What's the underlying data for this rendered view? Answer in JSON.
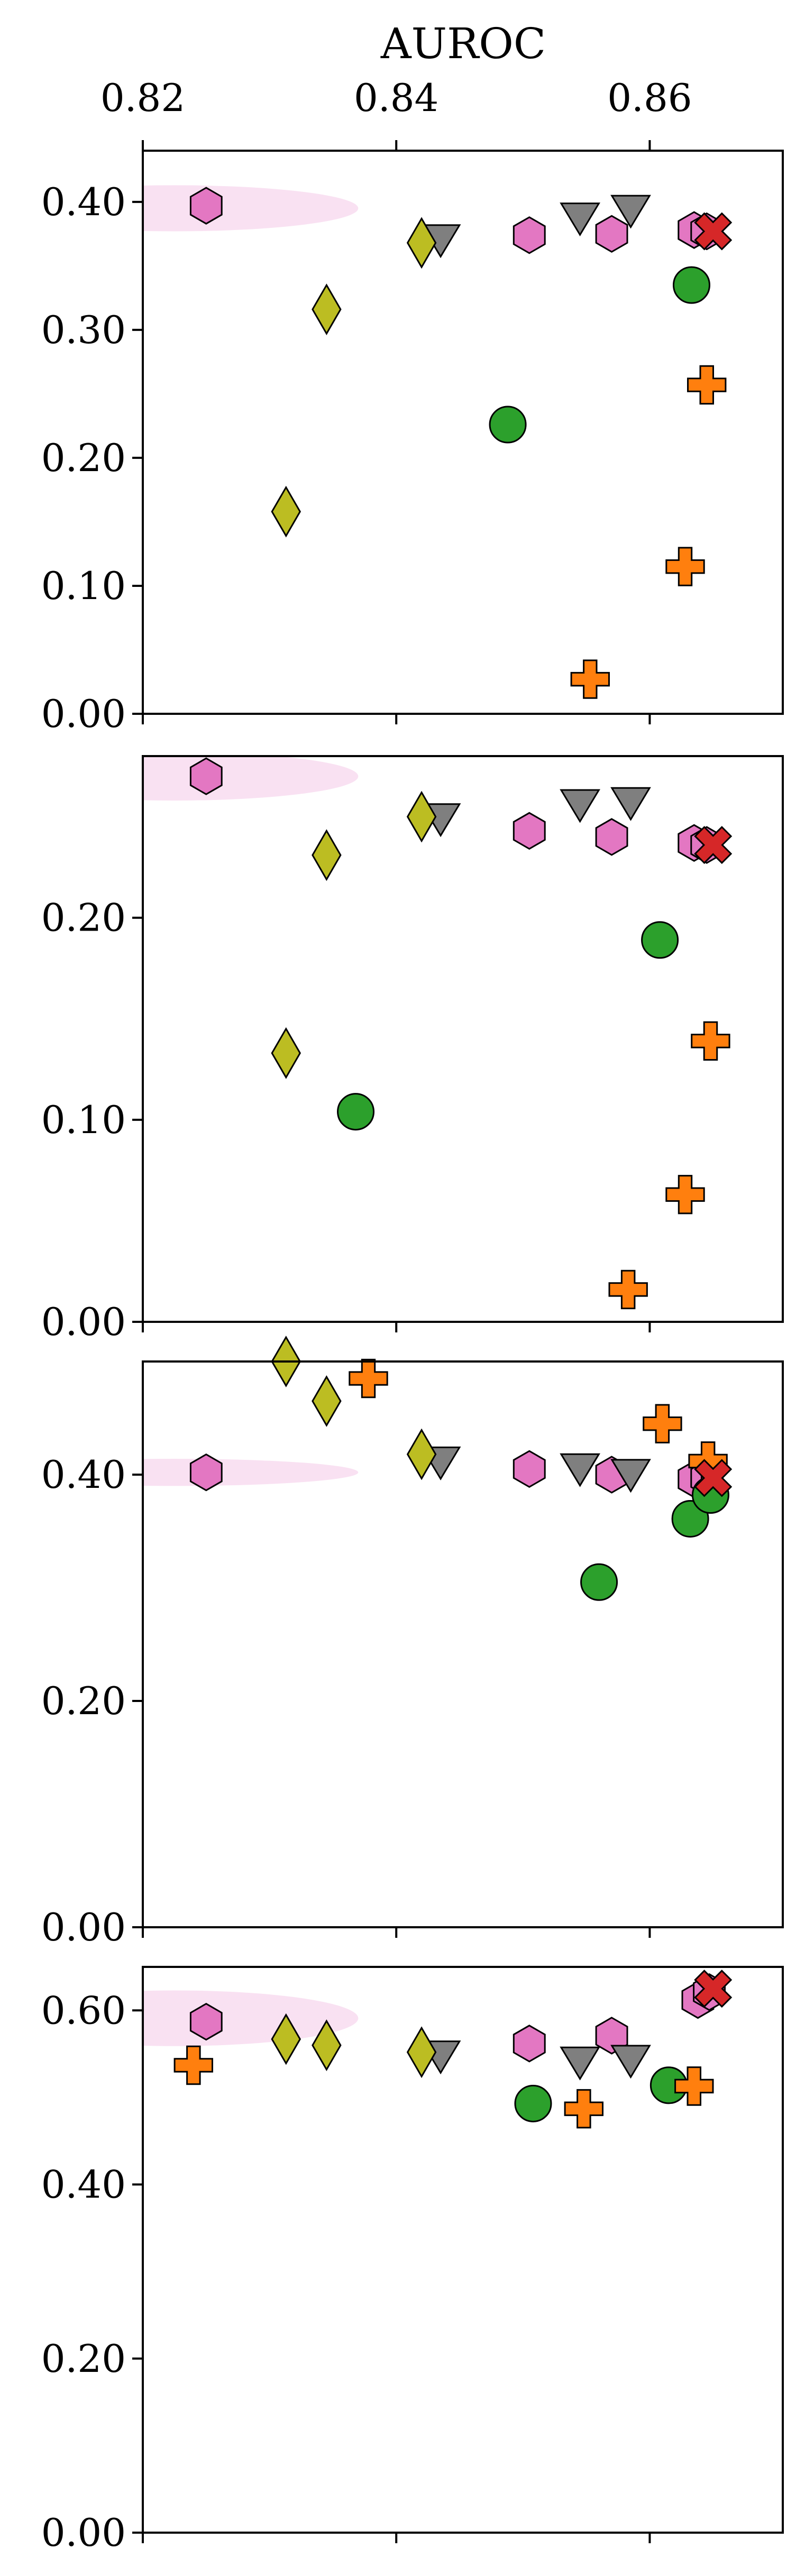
{
  "chart_data": {
    "type": "scatter",
    "title": "",
    "xlabel": "AUROC",
    "x_ticks": [
      0.82,
      0.84,
      0.86
    ],
    "x_tick_labels": [
      "0.82",
      "0.84",
      "0.86"
    ],
    "xlim": [
      0.82,
      0.8705
    ],
    "grid": false,
    "legend": "none",
    "colors": {
      "hexagon": "#e377c2",
      "triangle": "#7f7f7f",
      "diamond": "#bcbd22",
      "circle": "#2ca02c",
      "plus": "#ff7f0e",
      "x": "#d62728",
      "band": "#f7d7ee"
    },
    "panels": [
      {
        "ylim": [
          0,
          0.44
        ],
        "y_ticks": [
          0,
          0.1,
          0.2,
          0.3,
          0.4
        ],
        "y_tick_labels": [
          "0.00",
          "0.10",
          "0.20",
          "0.30",
          "0.40"
        ],
        "highlight_band": {
          "x_center": 0.8225,
          "x_halfwidth": 0.0145,
          "y_center": 0.395,
          "y_halfheight": 0.018
        },
        "series": [
          {
            "marker": "hexagon",
            "x": [
              0.825,
              0.8505,
              0.857,
              0.8635,
              0.8645
            ],
            "y": [
              0.397,
              0.374,
              0.375,
              0.378,
              0.377
            ]
          },
          {
            "marker": "triangle",
            "x": [
              0.8435,
              0.8545,
              0.8585
            ],
            "y": [
              0.372,
              0.389,
              0.395
            ]
          },
          {
            "marker": "diamond",
            "x": [
              0.8313,
              0.8345,
              0.842
            ],
            "y": [
              0.158,
              0.316,
              0.368
            ]
          },
          {
            "marker": "circle",
            "x": [
              0.8488,
              0.8633
            ],
            "y": [
              0.226,
              0.335
            ]
          },
          {
            "marker": "plus",
            "x": [
              0.8553,
              0.8628,
              0.8645
            ],
            "y": [
              0.027,
              0.115,
              0.257
            ]
          },
          {
            "marker": "x",
            "x": [
              0.865
            ],
            "y": [
              0.377
            ]
          }
        ]
      },
      {
        "ylim": [
          0,
          0.28
        ],
        "y_ticks": [
          0,
          0.1,
          0.2
        ],
        "y_tick_labels": [
          "0.00",
          "0.10",
          "0.20"
        ],
        "highlight_band": {
          "x_center": 0.8225,
          "x_halfwidth": 0.0145,
          "y_center": 0.27,
          "y_halfheight": 0.012
        },
        "series": [
          {
            "marker": "hexagon",
            "x": [
              0.825,
              0.8505,
              0.857,
              0.8635,
              0.8645
            ],
            "y": [
              0.27,
              0.243,
              0.24,
              0.237,
              0.236
            ]
          },
          {
            "marker": "triangle",
            "x": [
              0.8435,
              0.8545,
              0.8585
            ],
            "y": [
              0.25,
              0.257,
              0.258
            ]
          },
          {
            "marker": "diamond",
            "x": [
              0.8313,
              0.8345,
              0.842
            ],
            "y": [
              0.133,
              0.231,
              0.25
            ]
          },
          {
            "marker": "circle",
            "x": [
              0.8368,
              0.8608
            ],
            "y": [
              0.104,
              0.189
            ]
          },
          {
            "marker": "plus",
            "x": [
              0.8583,
              0.8628,
              0.8648
            ],
            "y": [
              0.016,
              0.063,
              0.139
            ]
          },
          {
            "marker": "x",
            "x": [
              0.865
            ],
            "y": [
              0.236
            ]
          }
        ]
      },
      {
        "ylim": [
          0,
          0.5
        ],
        "y_ticks": [
          0,
          0.2,
          0.4
        ],
        "y_tick_labels": [
          "0.00",
          "0.20",
          "0.40"
        ],
        "highlight_band": {
          "x_center": 0.8225,
          "x_halfwidth": 0.0145,
          "y_center": 0.402,
          "y_halfheight": 0.012
        },
        "series": [
          {
            "marker": "hexagon",
            "x": [
              0.825,
              0.8505,
              0.857,
              0.8635,
              0.8645
            ],
            "y": [
              0.402,
              0.405,
              0.4,
              0.396,
              0.397
            ]
          },
          {
            "marker": "triangle",
            "x": [
              0.8435,
              0.8545,
              0.8585
            ],
            "y": [
              0.413,
              0.407,
              0.402
            ]
          },
          {
            "marker": "diamond",
            "x": [
              0.8313,
              0.8345,
              0.842
            ],
            "y": [
              0.5,
              0.465,
              0.418
            ]
          },
          {
            "marker": "circle",
            "x": [
              0.856,
              0.8632,
              0.8648
            ],
            "y": [
              0.305,
              0.361,
              0.382
            ]
          },
          {
            "marker": "plus",
            "x": [
              0.8378,
              0.861,
              0.8646
            ],
            "y": [
              0.485,
              0.445,
              0.412
            ]
          },
          {
            "marker": "x",
            "x": [
              0.865
            ],
            "y": [
              0.397
            ]
          }
        ]
      },
      {
        "ylim": [
          0,
          0.65
        ],
        "y_ticks": [
          0,
          0.2,
          0.4,
          0.6
        ],
        "y_tick_labels": [
          "0.00",
          "0.20",
          "0.40",
          "0.60"
        ],
        "highlight_band": {
          "x_center": 0.8225,
          "x_halfwidth": 0.0145,
          "y_center": 0.591,
          "y_halfheight": 0.032
        },
        "series": [
          {
            "marker": "hexagon",
            "x": [
              0.825,
              0.8505,
              0.857,
              0.8638,
              0.8647
            ],
            "y": [
              0.587,
              0.562,
              0.571,
              0.612,
              0.621
            ]
          },
          {
            "marker": "triangle",
            "x": [
              0.8435,
              0.8545,
              0.8585
            ],
            "y": [
              0.55,
              0.543,
              0.545
            ]
          },
          {
            "marker": "diamond",
            "x": [
              0.8313,
              0.8345,
              0.842
            ],
            "y": [
              0.567,
              0.56,
              0.552
            ]
          },
          {
            "marker": "circle",
            "x": [
              0.8508,
              0.8615
            ],
            "y": [
              0.493,
              0.514
            ]
          },
          {
            "marker": "plus",
            "x": [
              0.824,
              0.8548,
              0.8635
            ],
            "y": [
              0.537,
              0.487,
              0.513
            ]
          },
          {
            "marker": "x",
            "x": [
              0.865
            ],
            "y": [
              0.625
            ]
          }
        ]
      }
    ]
  }
}
